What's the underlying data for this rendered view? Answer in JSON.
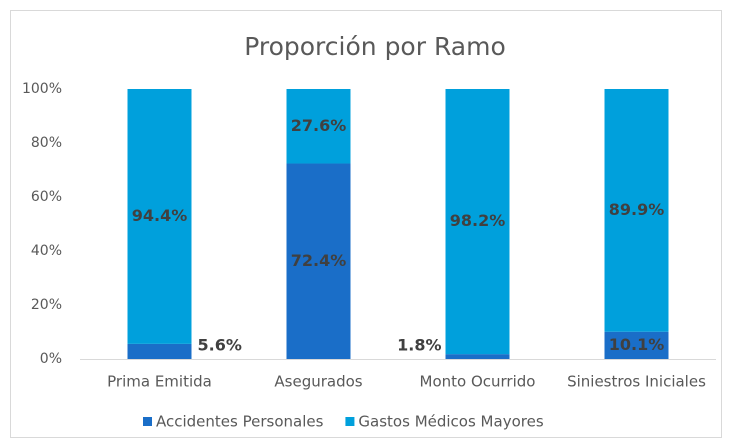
{
  "chart_data": {
    "type": "stacked_bar",
    "title": "Proporción por Ramo",
    "categories": [
      "Prima Emitida",
      "Asegurados",
      "Monto Ocurrido",
      "Siniestros Iniciales"
    ],
    "series": [
      {
        "name": "Accidentes Personales",
        "color": "#1a6ec8",
        "values": [
          5.6,
          72.4,
          1.8,
          10.1
        ],
        "value_labels": [
          "5.6%",
          "72.4%",
          "1.8%",
          "10.1%"
        ]
      },
      {
        "name": "Gastos Médicos Mayores",
        "color": "#00a0dc",
        "values": [
          94.4,
          27.6,
          98.2,
          89.9
        ],
        "value_labels": [
          "94.4%",
          "27.6%",
          "98.2%",
          "89.9%"
        ]
      }
    ],
    "ylim": [
      0,
      100
    ],
    "yticks": [
      {
        "value": 0,
        "label": "0%"
      },
      {
        "value": 20,
        "label": "20%"
      },
      {
        "value": 40,
        "label": "40%"
      },
      {
        "value": 60,
        "label": "60%"
      },
      {
        "value": 80,
        "label": "80%"
      },
      {
        "value": 100,
        "label": "100%"
      }
    ],
    "grid": false,
    "legend": "bottom"
  }
}
